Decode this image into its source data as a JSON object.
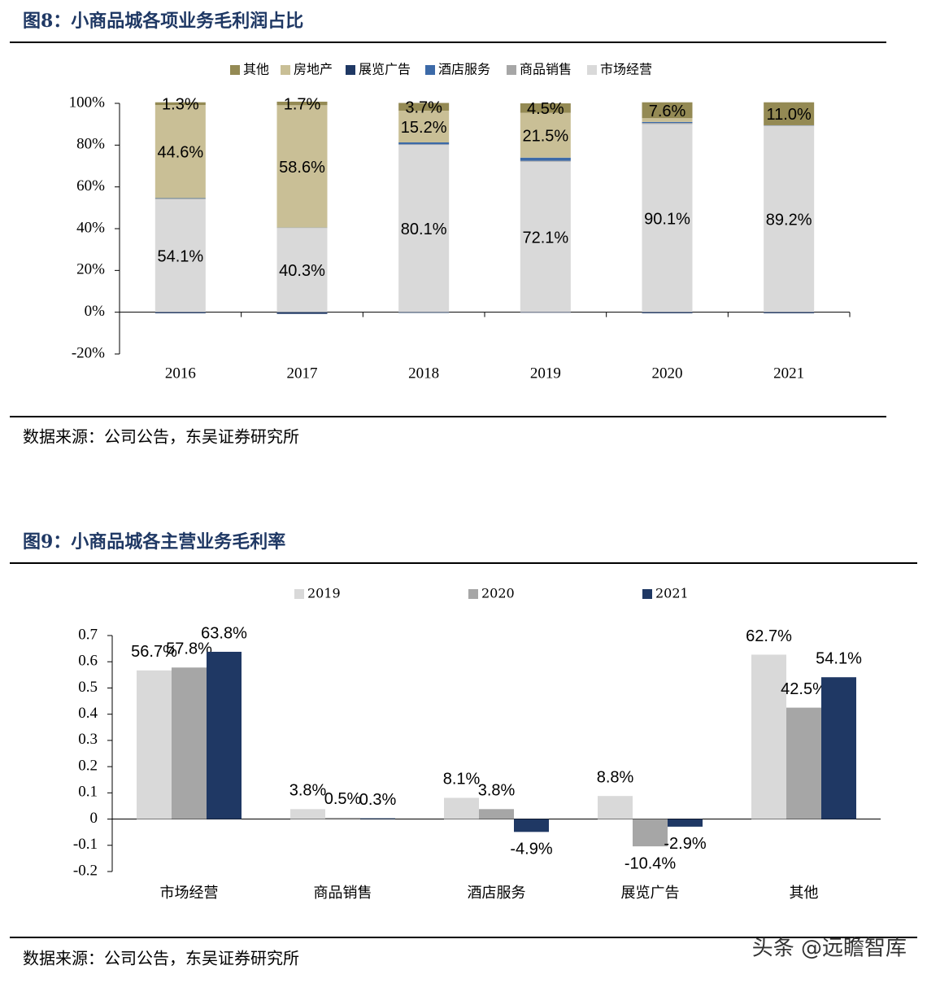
{
  "chart_data": [
    {
      "type": "bar",
      "stacked": true,
      "title": "图8：小商品城各项业务毛利润占比",
      "source": "数据来源：公司公告，东吴证券研究所",
      "categories": [
        "2016",
        "2017",
        "2018",
        "2019",
        "2020",
        "2021"
      ],
      "series": [
        {
          "name": "其他",
          "color": "#948a54",
          "values": [
            1.3,
            1.7,
            3.7,
            4.5,
            7.6,
            11.0
          ],
          "value_labels": [
            "1.3%",
            "1.7%",
            "3.7%",
            "4.5%",
            "7.6%",
            "11.0%"
          ]
        },
        {
          "name": "房地产",
          "color": "#c9bf96",
          "values": [
            44.6,
            58.6,
            15.2,
            21.5,
            1.8,
            0
          ],
          "value_labels": [
            "44.6%",
            "58.6%",
            "15.2%",
            "21.5%",
            null,
            null
          ]
        },
        {
          "name": "展览广告",
          "color": "#1f3864",
          "values": [
            -0.5,
            -0.8,
            -0.3,
            -0.2,
            -0.5,
            -0.5
          ]
        },
        {
          "name": "酒店服务",
          "color": "#3c6aa8",
          "values": [
            0.2,
            0.1,
            0.9,
            1.5,
            0.5,
            0.1
          ]
        },
        {
          "name": "商品销售",
          "color": "#a6a6a6",
          "values": [
            0.3,
            0.1,
            0.3,
            0.4,
            0.5,
            0.2
          ]
        },
        {
          "name": "市场经营",
          "color": "#d9d9d9",
          "values": [
            54.1,
            40.3,
            80.1,
            72.1,
            90.1,
            89.2
          ],
          "value_labels": [
            "54.1%",
            "40.3%",
            "80.1%",
            "72.1%",
            "90.1%",
            "89.2%"
          ]
        }
      ],
      "ylim": [
        -20,
        100
      ],
      "yticks": [
        {
          "value": -20,
          "label": "-20%"
        },
        {
          "value": 0,
          "label": "0%"
        },
        {
          "value": 20,
          "label": "20%"
        },
        {
          "value": 40,
          "label": "40%"
        },
        {
          "value": 60,
          "label": "60%"
        },
        {
          "value": 80,
          "label": "80%"
        },
        {
          "value": 100,
          "label": "100%"
        }
      ]
    },
    {
      "type": "bar",
      "title": "图9：小商品城各主营业务毛利率",
      "source": "数据来源：公司公告，东吴证券研究所",
      "categories": [
        "市场经营",
        "商品销售",
        "酒店服务",
        "展览广告",
        "其他"
      ],
      "series": [
        {
          "name": "2019",
          "color": "#d9d9d9",
          "values": [
            0.567,
            0.038,
            0.081,
            0.088,
            0.627
          ],
          "value_labels": [
            "56.7%",
            "3.8%",
            "8.1%",
            "8.8%",
            "62.7%"
          ]
        },
        {
          "name": "2020",
          "color": "#a6a6a6",
          "values": [
            0.578,
            0.005,
            0.038,
            -0.104,
            0.425
          ],
          "value_labels": [
            "57.8%",
            "0.5%",
            "3.8%",
            "-10.4%",
            "42.5%"
          ]
        },
        {
          "name": "2021",
          "color": "#1f3864",
          "values": [
            0.638,
            0.003,
            -0.049,
            -0.029,
            0.541
          ],
          "value_labels": [
            "63.8%",
            "0.3%",
            "-4.9%",
            "-2.9%",
            "54.1%"
          ]
        }
      ],
      "ylim": [
        -0.2,
        0.7
      ],
      "yticks": [
        -0.2,
        -0.1,
        0,
        0.1,
        0.2,
        0.3,
        0.4,
        0.5,
        0.6,
        0.7
      ]
    }
  ],
  "watermark": "头条 @远瞻智库"
}
